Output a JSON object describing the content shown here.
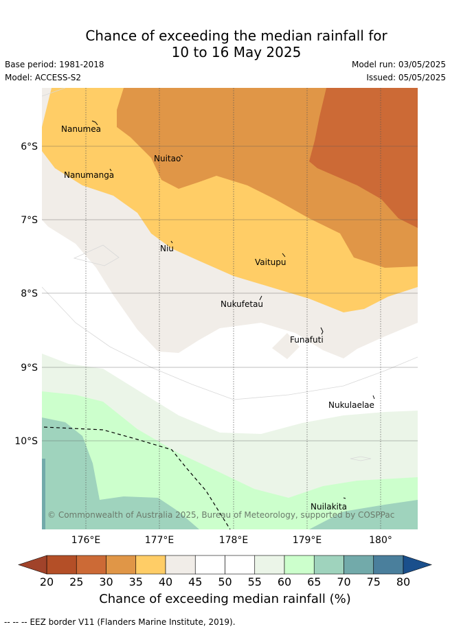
{
  "header": {
    "title_line1": "Chance of exceeding the median rainfall for",
    "title_line2": "10 to 16 May 2025",
    "base_period": "Base period: 1981-2018",
    "model": "Model: ACCESS-S2",
    "model_run": "Model run: 03/05/2025",
    "issued": "Issued: 05/05/2025"
  },
  "map": {
    "lon_labels": [
      "176°E",
      "177°E",
      "178°E",
      "179°E",
      "180°"
    ],
    "lat_labels": [
      "6°S",
      "7°S",
      "8°S",
      "9°S",
      "10°S"
    ],
    "places": [
      "Nanumea",
      "Nuitao",
      "Nanumanga",
      "Niu",
      "Vaitupu",
      "Nukufetau",
      "Funafuti",
      "Nukulaelae",
      "Nuilakita"
    ],
    "copyright": "© Commonwealth of Australia 2025, Bureau of Meteorology, supported by COSPPac"
  },
  "colorbar": {
    "ticks": [
      "20",
      "25",
      "30",
      "35",
      "40",
      "45",
      "50",
      "55",
      "60",
      "65",
      "70",
      "75",
      "80"
    ],
    "colors": [
      "#b44f27",
      "#cc6a36",
      "#e09647",
      "#ffcd66",
      "#f1ede8",
      "#ffffff",
      "#ffffff",
      "#ebf5e8",
      "#ccffcc",
      "#9fd3bd",
      "#72aaaa",
      "#4a7f9c"
    ],
    "low_extend_color": "#a1432a",
    "high_extend_color": "#1a4f8c",
    "label": "Chance of exceeding median rainfall (%)"
  },
  "legend": {
    "eez_dash": "-- -- --",
    "eez_text": "EEZ border V11 (Flanders Marine Institute, 2019)."
  }
}
